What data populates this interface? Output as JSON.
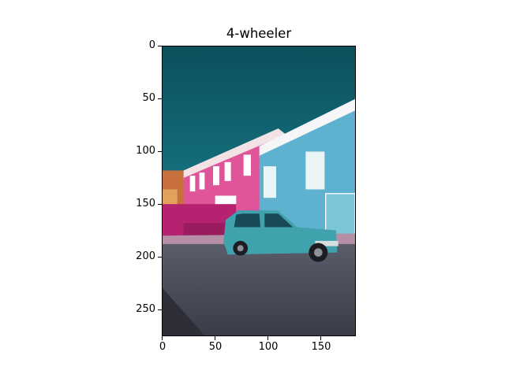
{
  "title": "4-wheeler",
  "image": {
    "subject": "teal hatchback parked on a street in front of pink and blue houses",
    "colors": {
      "sky": "#0e5f6d",
      "pink_house": "#e0559a",
      "blue_house": "#5fb2cf",
      "car": "#3fa2ac",
      "road": "#4a4d5a",
      "sidewalk": "#b48fa6"
    }
  },
  "axes": {
    "x_ticks": [
      "0",
      "50",
      "100",
      "150"
    ],
    "y_ticks": [
      "0",
      "50",
      "100",
      "150",
      "200",
      "250"
    ],
    "x_tick_values": [
      0,
      50,
      100,
      150
    ],
    "y_tick_values": [
      0,
      50,
      100,
      150,
      200,
      250
    ],
    "x_range": [
      0,
      183
    ],
    "y_range": [
      0,
      275
    ]
  }
}
